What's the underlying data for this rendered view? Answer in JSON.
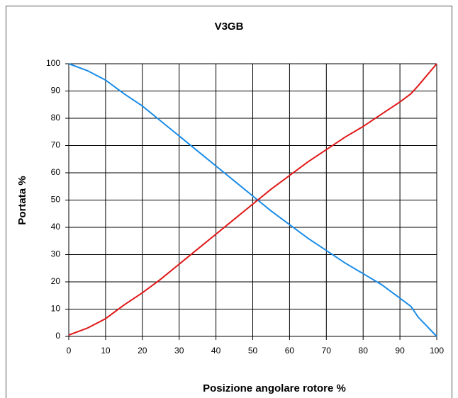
{
  "chart_data": {
    "type": "line",
    "title": "V3GB",
    "x_label": "Posizione angolare rotore %",
    "y_label": "Portata %",
    "x": [
      0,
      5,
      10,
      15,
      20,
      25,
      30,
      35,
      40,
      45,
      50,
      55,
      60,
      65,
      70,
      75,
      80,
      85,
      90,
      93,
      95,
      100
    ],
    "series": [
      {
        "color": "#1a8ce8",
        "values": [
          100,
          97.5,
          94,
          89,
          84.5,
          79,
          73.5,
          68,
          62.5,
          57,
          51.5,
          46,
          41,
          36,
          31.5,
          27,
          23,
          19,
          14,
          11,
          7,
          0
        ]
      },
      {
        "color": "#e01818",
        "values": [
          0.5,
          3,
          6.5,
          11.5,
          16,
          21,
          26.5,
          32,
          37.5,
          43,
          48.5,
          54,
          59,
          64,
          68.5,
          73,
          77,
          81.5,
          86,
          89,
          92,
          100
        ]
      }
    ],
    "xlim": [
      0,
      100
    ],
    "xticks": [
      0,
      10,
      20,
      30,
      40,
      50,
      60,
      70,
      80,
      90,
      100
    ],
    "ylim": [
      0,
      100
    ],
    "yticks": [
      0,
      10,
      20,
      30,
      40,
      50,
      60,
      70,
      80,
      90,
      100
    ],
    "grid": true
  }
}
